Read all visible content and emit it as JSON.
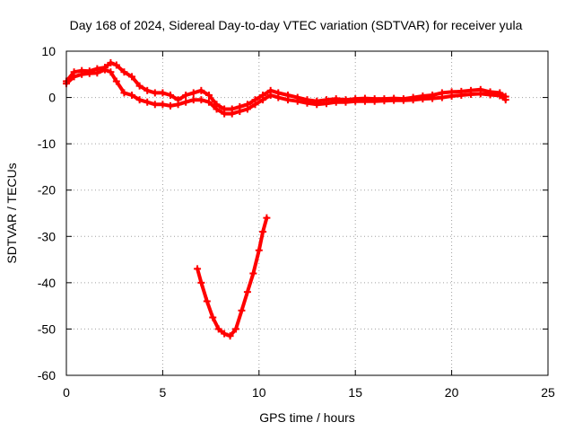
{
  "chart_data": {
    "type": "scatter",
    "title": "Day 168 of 2024, Sidereal Day-to-day VTEC variation (SDTVAR) for receiver yula",
    "xlabel": "GPS time / hours",
    "ylabel": "SDTVAR / TECUs",
    "xlim": [
      0,
      25
    ],
    "ylim": [
      -60,
      10
    ],
    "xticks": [
      0,
      5,
      10,
      15,
      20,
      25
    ],
    "yticks": [
      10,
      0,
      -10,
      -20,
      -30,
      -40,
      -50,
      -60
    ],
    "grid": true,
    "legend": "none",
    "series": [
      {
        "name": "main-band-upper",
        "color": "#ff0000",
        "x": [
          0.0,
          0.4,
          0.8,
          1.2,
          1.6,
          2.0,
          2.3,
          2.6,
          3.0,
          3.4,
          3.8,
          4.2,
          4.6,
          5.0,
          5.4,
          5.8,
          6.2,
          6.6,
          7.0,
          7.4,
          7.8,
          8.2,
          8.6,
          9.0,
          9.4,
          9.8,
          10.2,
          10.6,
          11.0,
          11.5,
          12.0,
          12.5,
          13.0,
          13.5,
          14.0,
          14.5,
          15.0,
          15.5,
          16.0,
          16.5,
          17.0,
          17.5,
          18.0,
          18.5,
          19.0,
          19.5,
          20.0,
          20.5,
          21.0,
          21.5,
          22.0,
          22.5,
          22.8
        ],
        "y": [
          3.5,
          5.5,
          5.8,
          5.7,
          6.2,
          6.5,
          7.5,
          7.0,
          5.5,
          4.5,
          2.5,
          1.5,
          1.0,
          1.0,
          0.5,
          -0.5,
          0.5,
          1.0,
          1.5,
          0.5,
          -1.5,
          -2.5,
          -2.5,
          -2.0,
          -1.5,
          -0.5,
          0.5,
          1.5,
          1.0,
          0.5,
          0.0,
          -0.5,
          -0.8,
          -0.5,
          -0.3,
          -0.5,
          -0.3,
          -0.2,
          -0.3,
          -0.3,
          -0.2,
          -0.3,
          0.0,
          0.3,
          0.5,
          1.0,
          1.2,
          1.3,
          1.5,
          1.7,
          1.2,
          1.0,
          0.2
        ]
      },
      {
        "name": "main-band-lower",
        "color": "#ff0000",
        "x": [
          0.0,
          0.4,
          0.8,
          1.2,
          1.6,
          2.0,
          2.3,
          2.6,
          3.0,
          3.4,
          3.8,
          4.2,
          4.6,
          5.0,
          5.4,
          5.8,
          6.2,
          6.6,
          7.0,
          7.4,
          7.8,
          8.2,
          8.6,
          9.0,
          9.4,
          9.8,
          10.2,
          10.6,
          11.0,
          11.5,
          12.0,
          12.5,
          13.0,
          13.5,
          14.0,
          14.5,
          15.0,
          15.5,
          16.0,
          16.5,
          17.0,
          17.5,
          18.0,
          18.5,
          19.0,
          19.5,
          20.0,
          20.5,
          21.0,
          21.5,
          22.0,
          22.5,
          22.8
        ],
        "y": [
          3.0,
          4.5,
          5.0,
          5.2,
          5.3,
          6.0,
          5.5,
          3.5,
          1.0,
          0.5,
          -0.5,
          -1.0,
          -1.5,
          -1.5,
          -1.8,
          -1.5,
          -1.0,
          -0.5,
          -0.5,
          -1.0,
          -2.5,
          -3.5,
          -3.5,
          -3.0,
          -2.5,
          -1.5,
          -0.5,
          0.5,
          0.0,
          -0.5,
          -0.8,
          -1.2,
          -1.5,
          -1.3,
          -1.0,
          -1.0,
          -0.8,
          -0.8,
          -0.8,
          -0.7,
          -0.6,
          -0.6,
          -0.5,
          -0.3,
          -0.2,
          0.0,
          0.3,
          0.5,
          0.7,
          0.8,
          0.6,
          0.4,
          -0.5
        ]
      },
      {
        "name": "secondary-arc",
        "color": "#ff0000",
        "x": [
          6.8,
          7.0,
          7.3,
          7.6,
          7.9,
          8.2,
          8.5,
          8.8,
          9.1,
          9.4,
          9.7,
          10.0,
          10.2,
          10.4
        ],
        "y": [
          -37,
          -40,
          -44,
          -47.5,
          -50,
          -51,
          -51.5,
          -50,
          -46,
          -42,
          -38,
          -33,
          -29,
          -26
        ]
      }
    ]
  }
}
